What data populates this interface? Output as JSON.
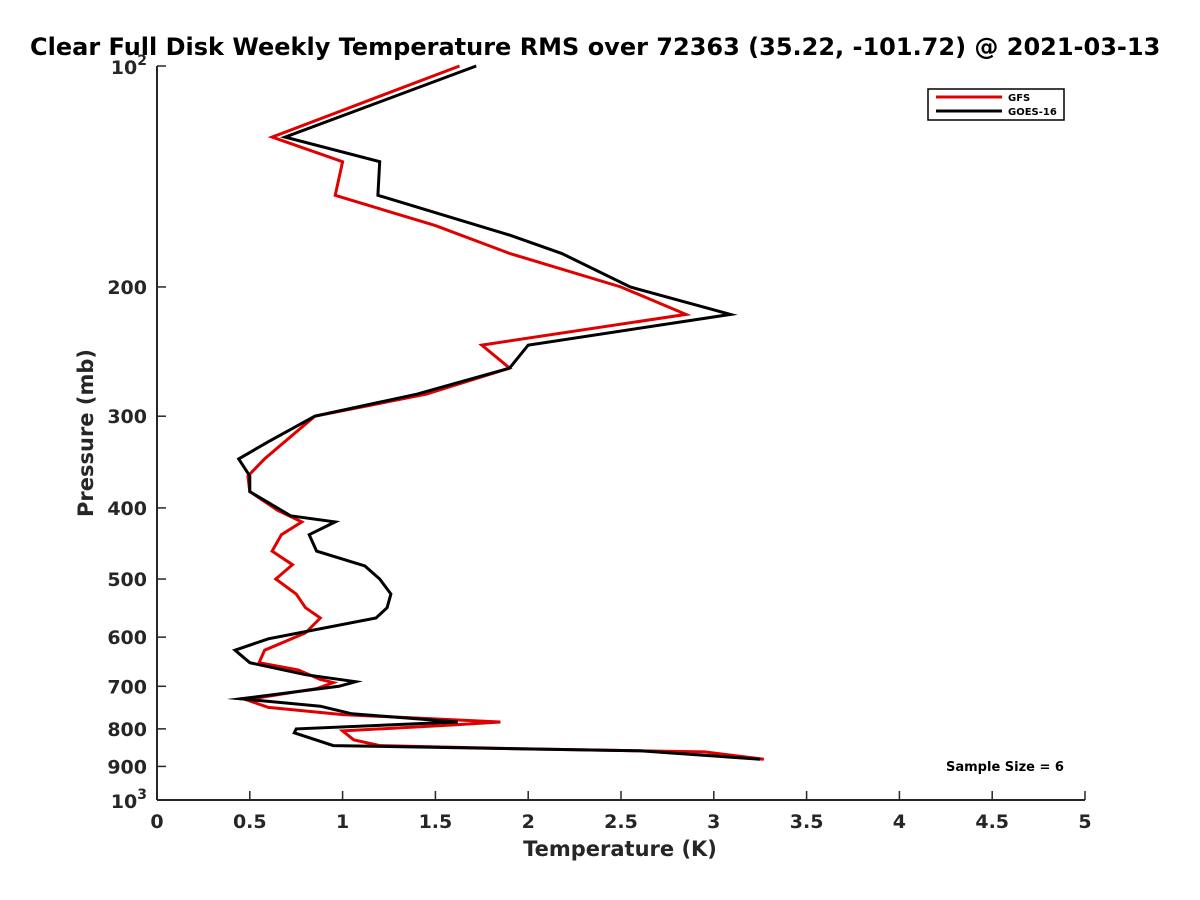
{
  "chart_data": {
    "type": "line",
    "title": "Clear Full Disk Weekly Temperature RMS over 72363 (35.22, -101.72) @ 2021-03-13",
    "xlabel": "Temperature (K)",
    "ylabel": "Pressure (mb)",
    "xlim": [
      0,
      5
    ],
    "ylim": [
      100,
      1000
    ],
    "y_scale": "log",
    "y_reversed": true,
    "grid": false,
    "legend_position": "top-right",
    "x_ticks": [
      {
        "value": 0,
        "label": "0"
      },
      {
        "value": 0.5,
        "label": "0.5"
      },
      {
        "value": 1,
        "label": "1"
      },
      {
        "value": 1.5,
        "label": "1.5"
      },
      {
        "value": 2,
        "label": "2"
      },
      {
        "value": 2.5,
        "label": "2.5"
      },
      {
        "value": 3,
        "label": "3"
      },
      {
        "value": 3.5,
        "label": "3.5"
      },
      {
        "value": 4,
        "label": "4"
      },
      {
        "value": 4.5,
        "label": "4.5"
      },
      {
        "value": 5,
        "label": "5"
      }
    ],
    "y_ticks": [
      {
        "value": 100,
        "base": "10",
        "exp": "2"
      },
      {
        "value": 200,
        "label": "200"
      },
      {
        "value": 300,
        "label": "300"
      },
      {
        "value": 400,
        "label": "400"
      },
      {
        "value": 500,
        "label": "500"
      },
      {
        "value": 600,
        "label": "600"
      },
      {
        "value": 700,
        "label": "700"
      },
      {
        "value": 800,
        "label": "800"
      },
      {
        "value": 900,
        "label": "900"
      },
      {
        "value": 1000,
        "base": "10",
        "exp": "3"
      }
    ],
    "series": [
      {
        "name": "GFS",
        "color": "#e00000",
        "points": [
          {
            "x": 1.63,
            "p": 100
          },
          {
            "x": 0.62,
            "p": 125
          },
          {
            "x": 1.0,
            "p": 135
          },
          {
            "x": 0.96,
            "p": 150
          },
          {
            "x": 1.5,
            "p": 165
          },
          {
            "x": 1.9,
            "p": 180
          },
          {
            "x": 2.5,
            "p": 200
          },
          {
            "x": 2.85,
            "p": 218
          },
          {
            "x": 1.75,
            "p": 240
          },
          {
            "x": 1.9,
            "p": 258
          },
          {
            "x": 1.45,
            "p": 280
          },
          {
            "x": 0.85,
            "p": 300
          },
          {
            "x": 0.58,
            "p": 343
          },
          {
            "x": 0.49,
            "p": 362
          },
          {
            "x": 0.5,
            "p": 380
          },
          {
            "x": 0.65,
            "p": 403
          },
          {
            "x": 0.78,
            "p": 418
          },
          {
            "x": 0.67,
            "p": 435
          },
          {
            "x": 0.62,
            "p": 458
          },
          {
            "x": 0.73,
            "p": 478
          },
          {
            "x": 0.64,
            "p": 500
          },
          {
            "x": 0.75,
            "p": 524
          },
          {
            "x": 0.8,
            "p": 547
          },
          {
            "x": 0.88,
            "p": 565
          },
          {
            "x": 0.8,
            "p": 592
          },
          {
            "x": 0.58,
            "p": 625
          },
          {
            "x": 0.55,
            "p": 650
          },
          {
            "x": 0.76,
            "p": 665
          },
          {
            "x": 0.88,
            "p": 685
          },
          {
            "x": 0.95,
            "p": 692
          },
          {
            "x": 0.86,
            "p": 705
          },
          {
            "x": 0.48,
            "p": 730
          },
          {
            "x": 0.6,
            "p": 748
          },
          {
            "x": 1.0,
            "p": 765
          },
          {
            "x": 1.85,
            "p": 783
          },
          {
            "x": 1.6,
            "p": 790
          },
          {
            "x": 1.0,
            "p": 805
          },
          {
            "x": 1.06,
            "p": 828
          },
          {
            "x": 1.2,
            "p": 843
          },
          {
            "x": 2.0,
            "p": 852
          },
          {
            "x": 2.95,
            "p": 860
          },
          {
            "x": 3.27,
            "p": 880
          }
        ]
      },
      {
        "name": "GOES-16",
        "color": "#000000",
        "points": [
          {
            "x": 1.72,
            "p": 100
          },
          {
            "x": 0.69,
            "p": 125
          },
          {
            "x": 1.2,
            "p": 135
          },
          {
            "x": 1.19,
            "p": 150
          },
          {
            "x": 1.9,
            "p": 170
          },
          {
            "x": 2.18,
            "p": 180
          },
          {
            "x": 2.55,
            "p": 200
          },
          {
            "x": 3.09,
            "p": 218
          },
          {
            "x": 2.0,
            "p": 240
          },
          {
            "x": 1.9,
            "p": 258
          },
          {
            "x": 1.4,
            "p": 280
          },
          {
            "x": 0.85,
            "p": 300
          },
          {
            "x": 0.6,
            "p": 325
          },
          {
            "x": 0.44,
            "p": 343
          },
          {
            "x": 0.5,
            "p": 362
          },
          {
            "x": 0.5,
            "p": 380
          },
          {
            "x": 0.72,
            "p": 410
          },
          {
            "x": 0.96,
            "p": 418
          },
          {
            "x": 0.82,
            "p": 435
          },
          {
            "x": 0.86,
            "p": 458
          },
          {
            "x": 1.12,
            "p": 480
          },
          {
            "x": 1.2,
            "p": 500
          },
          {
            "x": 1.26,
            "p": 524
          },
          {
            "x": 1.24,
            "p": 547
          },
          {
            "x": 1.18,
            "p": 565
          },
          {
            "x": 0.6,
            "p": 603
          },
          {
            "x": 0.42,
            "p": 625
          },
          {
            "x": 0.5,
            "p": 650
          },
          {
            "x": 0.8,
            "p": 675
          },
          {
            "x": 1.07,
            "p": 690
          },
          {
            "x": 0.98,
            "p": 700
          },
          {
            "x": 0.45,
            "p": 728
          },
          {
            "x": 0.88,
            "p": 745
          },
          {
            "x": 1.05,
            "p": 763
          },
          {
            "x": 1.62,
            "p": 783
          },
          {
            "x": 0.75,
            "p": 800
          },
          {
            "x": 0.74,
            "p": 810
          },
          {
            "x": 0.95,
            "p": 843
          },
          {
            "x": 2.6,
            "p": 857
          },
          {
            "x": 3.25,
            "p": 880
          }
        ]
      }
    ],
    "annotations": [
      {
        "text": "Sample Size = 6"
      }
    ]
  }
}
